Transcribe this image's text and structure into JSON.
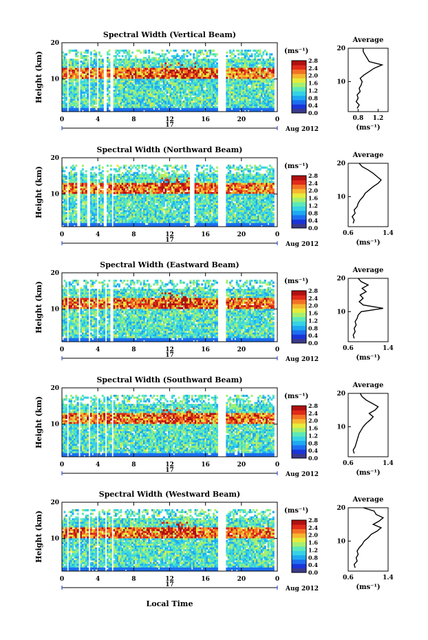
{
  "figure": {
    "xlabel": "Local Time",
    "date_label": "Aug 2012",
    "day_label": "17",
    "units_label": "(ms⁻¹)",
    "avg_title": "Average",
    "ylabel": "Height (km)"
  },
  "colors": {
    "palette": [
      "#3a3a8c",
      "#1a35d8",
      "#1c6ff0",
      "#1ea9f2",
      "#36d2e6",
      "#5ee8b8",
      "#a6f070",
      "#e6ec3c",
      "#f6b630",
      "#f27224",
      "#e02a1a",
      "#b01010"
    ]
  },
  "chart_data": [
    {
      "type": "heatmap",
      "title": "Spectral Width (Vertical Beam)",
      "xlabel": "Local Time",
      "ylabel": "Height (km)",
      "x_ticks": [
        "0",
        "4",
        "8",
        "12",
        "16",
        "20",
        "0"
      ],
      "y_ticks": [
        "20",
        "10"
      ],
      "xlim": [
        0,
        24
      ],
      "ylim": [
        1,
        20
      ],
      "colorbar": {
        "label": "(ms⁻¹)",
        "ticks": [
          "2.8",
          "2.4",
          "2.0",
          "1.6",
          "1.2",
          "0.8",
          "0.4",
          "0.0"
        ]
      },
      "gaps_hours": [
        [
          0.6,
          0.8
        ],
        [
          1.8,
          2.1
        ],
        [
          2.9,
          3.2
        ],
        [
          3.8,
          4.1
        ],
        [
          4.7,
          5.0
        ],
        [
          5.4,
          5.7
        ],
        [
          17.3,
          18.2
        ]
      ],
      "average_profile": {
        "title": "Average",
        "xlabel": "(ms⁻¹)",
        "x_ticks": [
          "0.8",
          "1.2"
        ],
        "xlim": [
          0.6,
          1.4
        ],
        "y_ticks": [
          "20",
          "10"
        ],
        "heights": [
          2,
          3,
          4,
          5,
          6,
          7,
          8,
          9,
          10,
          11,
          12,
          13,
          14,
          15,
          16,
          17,
          18,
          19,
          20
        ],
        "values": [
          0.78,
          0.82,
          0.76,
          0.8,
          0.78,
          0.84,
          0.82,
          0.86,
          0.88,
          0.84,
          0.92,
          1.02,
          1.12,
          1.28,
          1.02,
          0.98,
          0.94,
          0.9,
          0.9
        ]
      }
    },
    {
      "type": "heatmap",
      "title": "Spectral Width (Northward Beam)",
      "xlabel": "Local Time",
      "ylabel": "Height (km)",
      "x_ticks": [
        "0",
        "4",
        "8",
        "12",
        "16",
        "20",
        "0"
      ],
      "y_ticks": [
        "20",
        "10"
      ],
      "xlim": [
        0,
        24
      ],
      "ylim": [
        1,
        20
      ],
      "colorbar": {
        "label": "(ms⁻¹)",
        "ticks": [
          "2.8",
          "2.4",
          "2.0",
          "1.6",
          "1.2",
          "0.8",
          "0.4",
          "0.0"
        ]
      },
      "gaps_hours": [
        [
          0.5,
          0.8
        ],
        [
          1.7,
          2.0
        ],
        [
          2.8,
          3.2
        ],
        [
          3.8,
          4.1
        ],
        [
          4.7,
          5.0
        ],
        [
          5.5,
          5.8
        ],
        [
          14.2,
          14.7
        ],
        [
          17.3,
          18.2
        ]
      ],
      "average_profile": {
        "title": "Average",
        "xlabel": "(ms⁻¹)",
        "x_ticks": [
          "0.6",
          "1.4"
        ],
        "xlim": [
          0.6,
          1.4
        ],
        "y_ticks": [
          "20",
          "10"
        ],
        "heights": [
          2,
          3,
          4,
          5,
          6,
          7,
          8,
          9,
          10,
          11,
          12,
          13,
          14,
          15,
          16,
          17,
          18,
          19,
          20
        ],
        "values": [
          0.7,
          0.72,
          0.68,
          0.74,
          0.72,
          0.78,
          0.8,
          0.84,
          0.9,
          0.94,
          1.02,
          1.1,
          1.2,
          1.26,
          1.18,
          1.1,
          1.0,
          0.88,
          0.82
        ]
      }
    },
    {
      "type": "heatmap",
      "title": "Spectral Width (Eastward Beam)",
      "xlabel": "Local Time",
      "ylabel": "Height (km)",
      "x_ticks": [
        "0",
        "4",
        "8",
        "12",
        "16",
        "20",
        "0"
      ],
      "y_ticks": [
        "20",
        "10"
      ],
      "xlim": [
        0,
        24
      ],
      "ylim": [
        1,
        20
      ],
      "colorbar": {
        "label": "(ms⁻¹)",
        "ticks": [
          "2.8",
          "2.4",
          "2.0",
          "1.6",
          "1.2",
          "0.8",
          "0.4",
          "0.0"
        ]
      },
      "gaps_hours": [
        [
          0.6,
          0.8
        ],
        [
          1.8,
          2.1
        ],
        [
          2.9,
          3.2
        ],
        [
          3.8,
          4.1
        ],
        [
          4.8,
          5.0
        ],
        [
          5.4,
          5.8
        ],
        [
          17.3,
          18.2
        ]
      ],
      "average_profile": {
        "title": "Average",
        "xlabel": "(ms⁻¹)",
        "x_ticks": [
          "0.6",
          "1.4"
        ],
        "xlim": [
          0.6,
          1.4
        ],
        "y_ticks": [
          "20",
          "10"
        ],
        "heights": [
          2,
          3,
          4,
          5,
          6,
          7,
          8,
          9,
          10,
          11,
          12,
          13,
          14,
          15,
          16,
          17,
          18,
          19,
          20
        ],
        "values": [
          0.72,
          0.7,
          0.74,
          0.72,
          0.76,
          0.74,
          0.78,
          0.8,
          0.86,
          1.3,
          0.9,
          0.82,
          0.9,
          0.84,
          0.96,
          0.88,
          1.0,
          0.86,
          0.8
        ]
      }
    },
    {
      "type": "heatmap",
      "title": "Spectral Width (Southward Beam)",
      "xlabel": "Local Time",
      "ylabel": "Height (km)",
      "x_ticks": [
        "0",
        "4",
        "8",
        "12",
        "16",
        "20",
        "0"
      ],
      "y_ticks": [
        "20",
        "10"
      ],
      "xlim": [
        0,
        24
      ],
      "ylim": [
        1,
        20
      ],
      "colorbar": {
        "label": "(ms⁻¹)",
        "ticks": [
          "2.8",
          "2.4",
          "2.0",
          "1.6",
          "1.2",
          "0.8",
          "0.4",
          "0.0"
        ]
      },
      "gaps_hours": [
        [
          0.6,
          0.8
        ],
        [
          1.8,
          2.1
        ],
        [
          2.9,
          3.2
        ],
        [
          3.8,
          4.1
        ],
        [
          4.8,
          5.0
        ],
        [
          5.5,
          5.8
        ],
        [
          17.3,
          18.2
        ]
      ],
      "average_profile": {
        "title": "Average",
        "xlabel": "(ms⁻¹)",
        "x_ticks": [
          "0.6",
          "1.4"
        ],
        "xlim": [
          0.6,
          1.4
        ],
        "y_ticks": [
          "20",
          "10"
        ],
        "heights": [
          2,
          3,
          4,
          5,
          6,
          7,
          8,
          9,
          10,
          11,
          12,
          13,
          14,
          15,
          16,
          17,
          18,
          19,
          20
        ],
        "values": [
          0.72,
          0.7,
          0.74,
          0.76,
          0.78,
          0.8,
          0.82,
          0.86,
          0.9,
          0.96,
          1.04,
          1.1,
          1.02,
          1.14,
          1.2,
          1.08,
          0.96,
          0.88,
          0.84
        ]
      }
    },
    {
      "type": "heatmap",
      "title": "Spectral Width (Westward Beam)",
      "xlabel": "Local Time",
      "ylabel": "Height (km)",
      "x_ticks": [
        "0",
        "4",
        "8",
        "12",
        "16",
        "20",
        "0"
      ],
      "y_ticks": [
        "20",
        "10"
      ],
      "xlim": [
        0,
        24
      ],
      "ylim": [
        1,
        20
      ],
      "colorbar": {
        "label": "(ms⁻¹)",
        "ticks": [
          "2.8",
          "2.4",
          "2.0",
          "1.6",
          "1.2",
          "0.8",
          "0.4",
          "0.0"
        ]
      },
      "gaps_hours": [
        [
          0.6,
          0.8
        ],
        [
          1.8,
          2.1
        ],
        [
          2.9,
          3.2
        ],
        [
          3.8,
          4.1
        ],
        [
          4.8,
          5.0
        ],
        [
          5.5,
          5.8
        ],
        [
          17.3,
          18.2
        ]
      ],
      "average_profile": {
        "title": "Average",
        "xlabel": "(ms⁻¹)",
        "x_ticks": [
          "0.6",
          "1.4"
        ],
        "xlim": [
          0.6,
          1.4
        ],
        "y_ticks": [
          "20",
          "10"
        ],
        "heights": [
          2,
          3,
          4,
          5,
          6,
          7,
          8,
          9,
          10,
          11,
          12,
          13,
          14,
          15,
          16,
          17,
          18,
          19,
          20
        ],
        "values": [
          0.74,
          0.72,
          0.78,
          0.76,
          0.8,
          0.78,
          0.82,
          0.88,
          0.92,
          1.0,
          1.06,
          1.18,
          1.26,
          1.1,
          1.22,
          1.3,
          1.16,
          1.12,
          0.9
        ]
      }
    }
  ]
}
